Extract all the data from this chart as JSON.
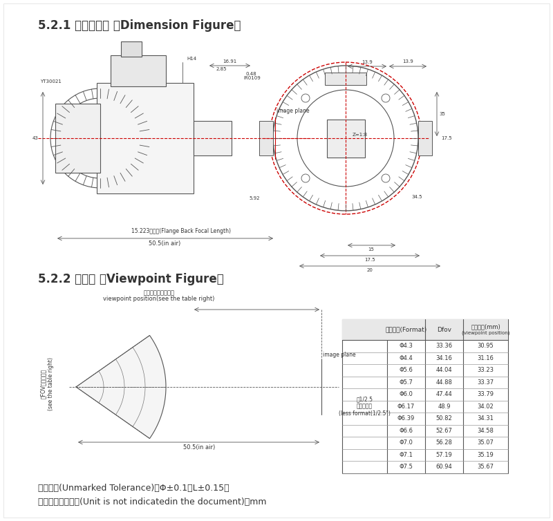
{
  "title1": "5.2.1 外形尺寸图 （Dimension Figure）",
  "title2": "5.2.2 视点图 （Viewpoint Figure）",
  "footer_line1": "未注公差(Unmarked Tolerance)：Φ±0.1，L±0.15，",
  "footer_line2": "本规格书未注单位(Unit is not indicatedin the document)：mm",
  "table_header_col1": "像面大小(Format)",
  "table_header_col2": "Dfov",
  "table_header_col3": "视点位置(mm)\n(viewpoint position)",
  "table_subrow_label": "（1/2.5\n以下镜头）\n(less format(1/2.5\")",
  "table_data": [
    [
      "Φ4.3",
      "33.36",
      "30.95"
    ],
    [
      "Φ4.4",
      "34.16",
      "31.16"
    ],
    [
      "Φ5.6",
      "44.04",
      "33.23"
    ],
    [
      "Φ5.7",
      "44.88",
      "33.37"
    ],
    [
      "Φ6.0",
      "47.44",
      "33.79"
    ],
    [
      "Φ6.17",
      "48.9",
      "34.02"
    ],
    [
      "Φ6.39",
      "50.82",
      "34.31"
    ],
    [
      "Φ6.6",
      "52.67",
      "34.58"
    ],
    [
      "Φ7.0",
      "56.28",
      "35.07"
    ],
    [
      "Φ7.1",
      "57.19",
      "35.19"
    ],
    [
      "Φ7.5",
      "60.94",
      "35.67"
    ]
  ],
  "bg_color": "#ffffff",
  "text_color": "#333333",
  "line_color": "#555555",
  "red_color": "#cc0000",
  "dim_line_color": "#444444"
}
